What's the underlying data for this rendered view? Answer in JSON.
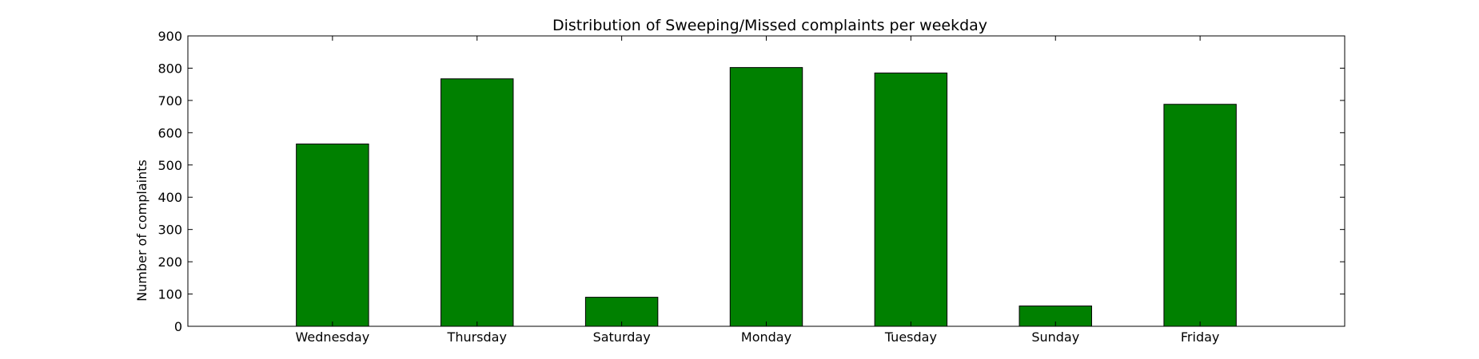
{
  "chart_data": {
    "type": "bar",
    "title": "Distribution of  Sweeping/Missed complaints per weekday",
    "xlabel": "",
    "ylabel": "Number of complaints",
    "categories": [
      "Wednesday",
      "Thursday",
      "Saturday",
      "Monday",
      "Tuesday",
      "Sunday",
      "Friday"
    ],
    "values": [
      565,
      767,
      90,
      802,
      785,
      63,
      688
    ],
    "ylim": [
      0,
      900
    ],
    "yticks": [
      0,
      100,
      200,
      300,
      400,
      500,
      600,
      700,
      800,
      900
    ],
    "grid": false,
    "legend": "none",
    "bar_color": "#008000",
    "edge_color": "#000000"
  }
}
